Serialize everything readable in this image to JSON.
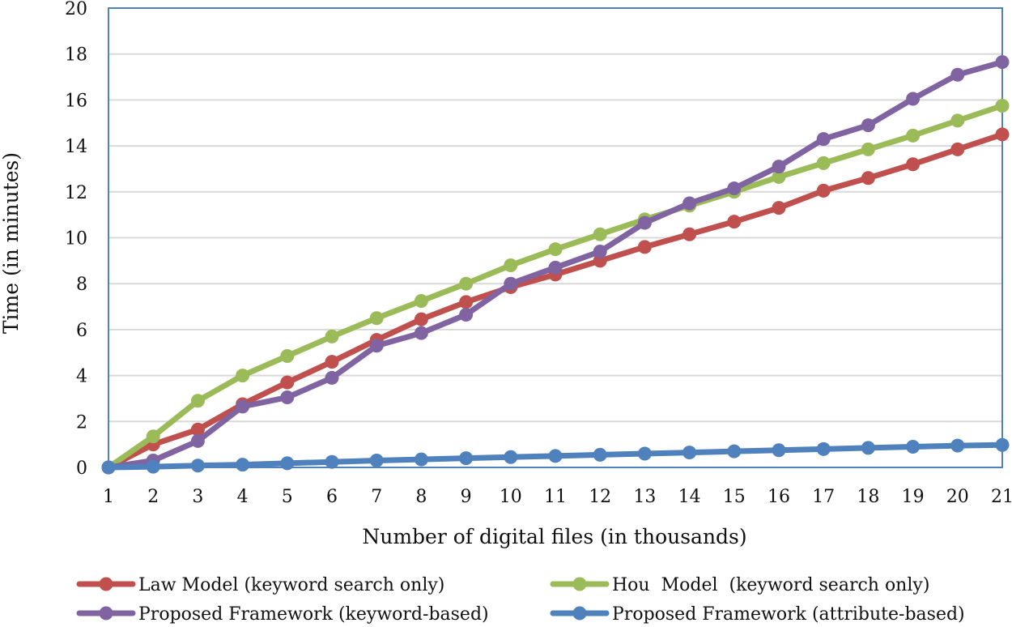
{
  "chart_data": {
    "type": "line",
    "x": [
      1,
      2,
      3,
      4,
      5,
      6,
      7,
      8,
      9,
      10,
      11,
      12,
      13,
      14,
      15,
      16,
      17,
      18,
      19,
      20,
      21
    ],
    "xlabel": "Number of digital files (in thousands)",
    "ylabel": "Time (in minutes)",
    "ylim": [
      0,
      20
    ],
    "yticks": [
      0,
      2,
      4,
      6,
      8,
      10,
      12,
      14,
      16,
      18,
      20
    ],
    "grid": "horizontal",
    "legend_position": "bottom",
    "series": [
      {
        "name": "Law Model (keyword search only)",
        "color": "#c0504d",
        "values": [
          0,
          1,
          1.65,
          2.75,
          3.7,
          4.6,
          5.55,
          6.45,
          7.2,
          7.85,
          8.4,
          9.0,
          9.6,
          10.15,
          10.7,
          11.3,
          12.05,
          12.6,
          13.2,
          13.85,
          14.5
        ]
      },
      {
        "name": "Hou  Model  (keyword search only)",
        "color": "#9bbb59",
        "values": [
          0,
          1.35,
          2.9,
          4.0,
          4.85,
          5.7,
          6.5,
          7.25,
          8.0,
          8.8,
          9.5,
          10.15,
          10.8,
          11.4,
          12.0,
          12.65,
          13.25,
          13.85,
          14.45,
          15.1,
          15.75
        ]
      },
      {
        "name": "Proposed Framework (keyword-based)",
        "color": "#8064a2",
        "values": [
          0,
          0.3,
          1.15,
          2.65,
          3.05,
          3.9,
          5.3,
          5.85,
          6.65,
          8.0,
          8.7,
          9.4,
          10.65,
          11.5,
          12.15,
          13.1,
          14.3,
          14.9,
          16.05,
          17.1,
          17.65
        ]
      },
      {
        "name": "Proposed Framework (attribute-based)",
        "color": "#4f81bd",
        "values": [
          0,
          0.03,
          0.08,
          0.12,
          0.18,
          0.24,
          0.3,
          0.35,
          0.4,
          0.45,
          0.5,
          0.55,
          0.6,
          0.65,
          0.7,
          0.75,
          0.8,
          0.85,
          0.9,
          0.95,
          0.98
        ]
      }
    ]
  }
}
